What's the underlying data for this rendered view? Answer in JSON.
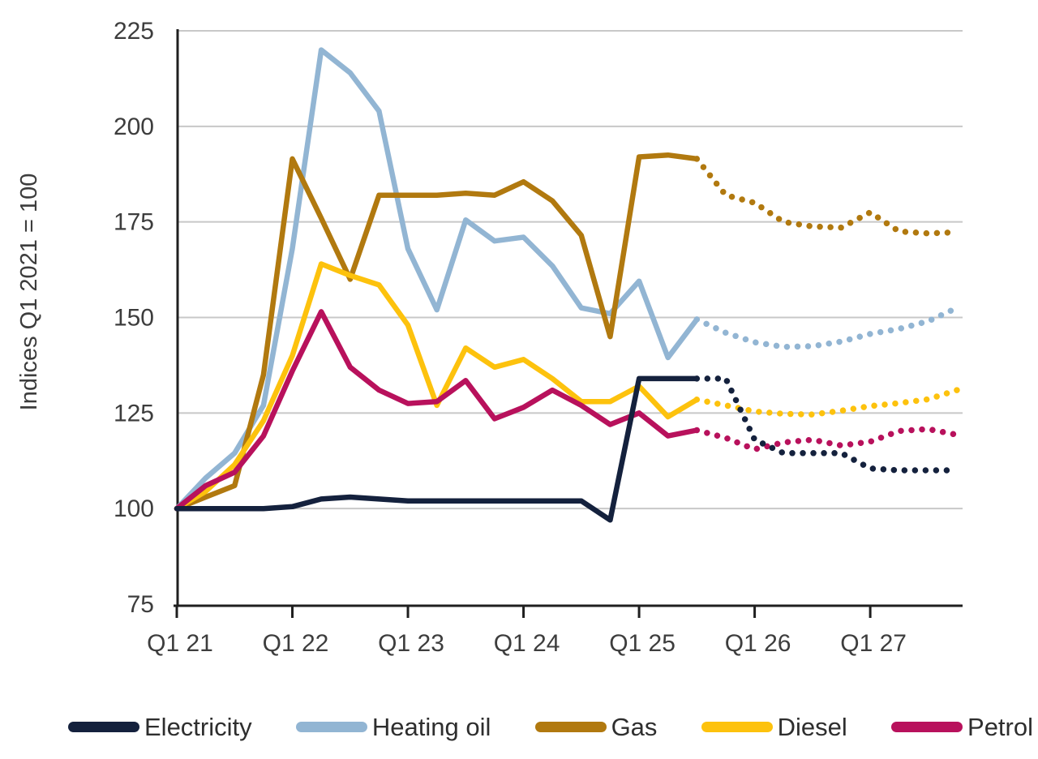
{
  "page": {
    "background": "#ffffff"
  },
  "style": {
    "text_color": "#3d3d3d",
    "legend_text_color": "#2e2e2e",
    "grid_color": "#c8c8c8",
    "axis_color": "#1f1f1f"
  },
  "chart_data": {
    "type": "line",
    "title": "",
    "ylabel": "Indices Q1 2021 = 100",
    "ylim": [
      75,
      225
    ],
    "yticks": [
      75,
      100,
      125,
      150,
      175,
      200,
      225
    ],
    "ytick_labels": [
      "75",
      "100",
      "125",
      "150",
      "175",
      "200",
      "225"
    ],
    "xtick_labels": [
      "Q1 21",
      "Q1 22",
      "Q1 23",
      "Q1 24",
      "Q1 25",
      "Q1 26",
      "Q1 27"
    ],
    "xtick_positions": [
      0,
      4,
      8,
      12,
      16,
      20,
      24
    ],
    "grid": "horizontal",
    "legend_position": "bottom",
    "forecast_start_index": 18,
    "forecast_style": "dotted",
    "series": [
      {
        "name": "Electricity",
        "color": "#14213d",
        "values": [
          100,
          100,
          100,
          100,
          100.5,
          102.5,
          103,
          102.5,
          102,
          102,
          102,
          102,
          102,
          102,
          102,
          97,
          134,
          134,
          134,
          134,
          118,
          114.5,
          114.5,
          114.5,
          110.5,
          110,
          110,
          110
        ]
      },
      {
        "name": "Heating oil",
        "color": "#92b5d3",
        "values": [
          100,
          108,
          114.5,
          127,
          168,
          220,
          214,
          204,
          168,
          152,
          175.5,
          170,
          171,
          163.5,
          152.5,
          151,
          159.5,
          139.5,
          149.5,
          146,
          143.5,
          142.3,
          142.5,
          143.7,
          145.7,
          147,
          149,
          152.5
        ]
      },
      {
        "name": "Gas",
        "color": "#b1790f",
        "values": [
          100,
          103,
          106,
          135,
          191.5,
          176,
          160,
          182,
          182,
          182,
          182.5,
          182,
          185.5,
          180.5,
          171.5,
          145,
          192,
          192.5,
          191.5,
          182,
          180,
          175,
          173.8,
          173.5,
          177.5,
          172.5,
          172,
          172.3
        ]
      },
      {
        "name": "Diesel",
        "color": "#fdc20d",
        "values": [
          100,
          104.5,
          111.5,
          123,
          140,
          164,
          161,
          158.5,
          148,
          127,
          142,
          137,
          139,
          134,
          128,
          128,
          132,
          124,
          128.5,
          127,
          125.4,
          124.8,
          124.6,
          125.6,
          126.8,
          127.6,
          128.6,
          131
        ]
      },
      {
        "name": "Petrol",
        "color": "#b8115c",
        "values": [
          100,
          106,
          109.5,
          119,
          136,
          151.5,
          137,
          131,
          127.5,
          128,
          133.5,
          123.5,
          126.5,
          131,
          127,
          122,
          125,
          119,
          120.5,
          118.5,
          115.5,
          117.3,
          118,
          116.5,
          117.5,
          120.3,
          120.8,
          119.3
        ]
      }
    ]
  }
}
